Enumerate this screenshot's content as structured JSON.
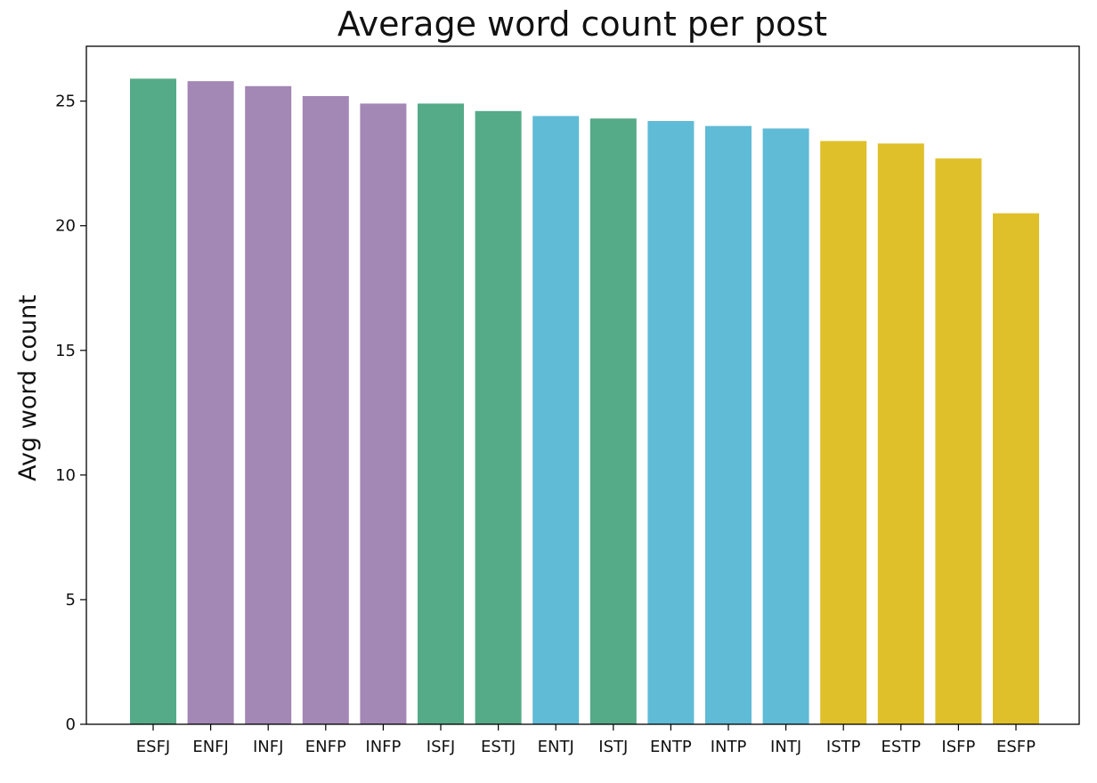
{
  "chart_data": {
    "type": "bar",
    "title": "Average word count per post",
    "xlabel": "",
    "ylabel": "Avg word count",
    "categories": [
      "ESFJ",
      "ENFJ",
      "INFJ",
      "ENFP",
      "INFP",
      "ISFJ",
      "ESTJ",
      "ENTJ",
      "ISTJ",
      "ENTP",
      "INTP",
      "INTJ",
      "ISTP",
      "ESTP",
      "ISFP",
      "ESFP"
    ],
    "values": [
      25.9,
      25.8,
      25.6,
      25.2,
      24.9,
      24.9,
      24.6,
      24.4,
      24.3,
      24.2,
      24.0,
      23.9,
      23.4,
      23.3,
      22.7,
      20.5
    ],
    "colors": [
      "#55aa88",
      "#a387b5",
      "#a387b5",
      "#a387b5",
      "#a387b5",
      "#55aa88",
      "#55aa88",
      "#5fbbd6",
      "#55aa88",
      "#5fbbd6",
      "#5fbbd6",
      "#5fbbd6",
      "#dfc02a",
      "#dfc02a",
      "#dfc02a",
      "#dfc02a"
    ],
    "ylim": [
      0,
      27.2
    ],
    "yticks": [
      0,
      5,
      10,
      15,
      20,
      25
    ],
    "ytick_labels": [
      "0",
      "5",
      "10",
      "15",
      "20",
      "25"
    ],
    "grid": false,
    "legend": "none"
  }
}
